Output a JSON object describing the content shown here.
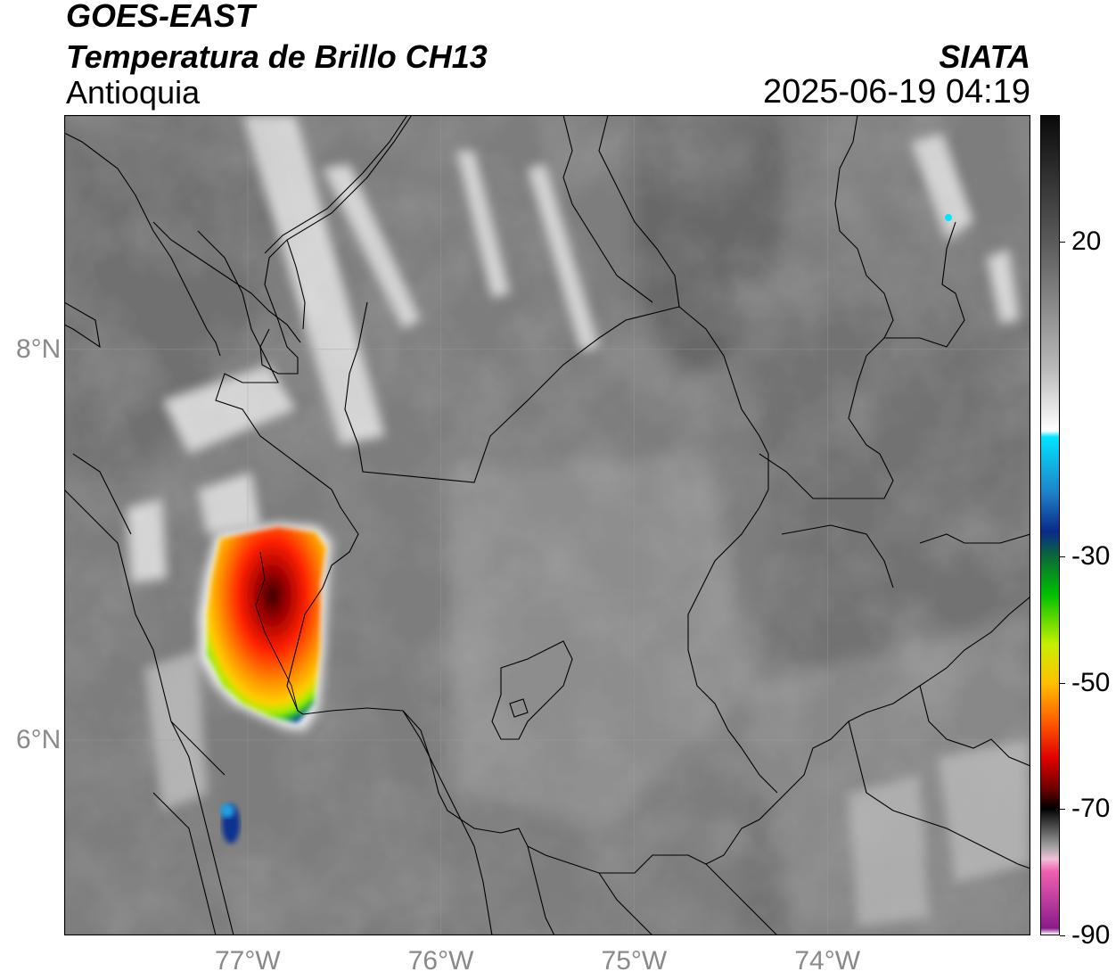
{
  "header": {
    "satellite": "GOES-EAST",
    "product": "Temperatura de Brillo CH13",
    "region": "Antioquia",
    "organization": "SIATA",
    "datetime": "2025-06-19 04:19"
  },
  "map": {
    "lon_range": [
      -77.95,
      -72.95
    ],
    "lat_range": [
      5.0,
      9.2
    ],
    "lon_ticks": [
      {
        "value": -77,
        "label": "77°W"
      },
      {
        "value": -76,
        "label": "76°W"
      },
      {
        "value": -75,
        "label": "75°W"
      },
      {
        "value": -74,
        "label": "74°W"
      }
    ],
    "lat_ticks": [
      {
        "value": 8,
        "label": "8°N"
      },
      {
        "value": 6,
        "label": "6°N"
      }
    ],
    "background_color": "#7d7d7d",
    "features": [
      {
        "name": "storm-cell-main",
        "center_lon": -76.97,
        "center_lat": 6.62,
        "min_temp_c": -70
      },
      {
        "name": "storm-cell-small",
        "center_lon": -77.1,
        "center_lat": 5.55,
        "min_temp_c": -35
      }
    ]
  },
  "colorbar": {
    "label_ticks": [
      {
        "value": 20,
        "label": "20"
      },
      {
        "value": -30,
        "label": "-30"
      },
      {
        "value": -50,
        "label": "-50"
      },
      {
        "value": -70,
        "label": "-70"
      },
      {
        "value": -90,
        "label": "-90"
      }
    ],
    "range": [
      -90,
      40
    ],
    "stops": [
      {
        "value": 40,
        "color": "#0a0a0a"
      },
      {
        "value": 20,
        "color": "#5a5a5a"
      },
      {
        "value": 0,
        "color": "#b8b8b8"
      },
      {
        "value": -10,
        "color": "#ffffff"
      },
      {
        "value": -11,
        "color": "#00e5ff"
      },
      {
        "value": -20,
        "color": "#1f7fc8"
      },
      {
        "value": -26,
        "color": "#0a2a8a"
      },
      {
        "value": -30,
        "color": "#0a6a3a"
      },
      {
        "value": -36,
        "color": "#00c000"
      },
      {
        "value": -44,
        "color": "#c8f000"
      },
      {
        "value": -50,
        "color": "#ffc000"
      },
      {
        "value": -56,
        "color": "#ff6000"
      },
      {
        "value": -62,
        "color": "#e00000"
      },
      {
        "value": -67,
        "color": "#6a0000"
      },
      {
        "value": -70,
        "color": "#000000"
      },
      {
        "value": -76,
        "color": "#a0a0a0"
      },
      {
        "value": -78,
        "color": "#f0c0d8"
      },
      {
        "value": -80,
        "color": "#f060b0"
      },
      {
        "value": -89,
        "color": "#8a1a8a"
      },
      {
        "value": -90,
        "color": "#ffffff"
      }
    ]
  }
}
